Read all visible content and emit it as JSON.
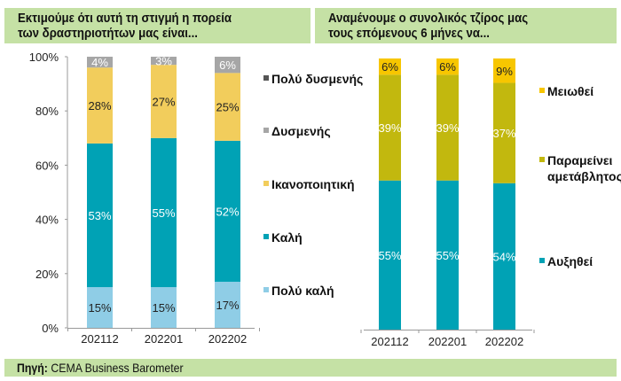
{
  "titles": {
    "left": [
      "Εκτιμούμε ότι αυτή τη στιγμή η πορεία",
      "των δραστηριοτήτων μας είναι..."
    ],
    "right": [
      "Αναμένουμε ο συνολικός τζίρος μας",
      "τους επόμενους 6 μήνες να..."
    ]
  },
  "footer": {
    "label": "Πηγή:",
    "source": "CEMA Business Barometer"
  },
  "chart_data": [
    {
      "type": "bar",
      "stacked": true,
      "title": "Εκτιμούμε ότι αυτή τη στιγμή η πορεία των δραστηριοτήτων μας είναι...",
      "categories": [
        "202112",
        "202201",
        "202202"
      ],
      "ylim": [
        0,
        100
      ],
      "yticks": [
        "0%",
        "20%",
        "40%",
        "60%",
        "80%",
        "100%"
      ],
      "legend_position": "right",
      "series": [
        {
          "name": "Πολύ καλή",
          "color": "#8fcde6",
          "label_color": "#222222",
          "values": [
            15,
            15,
            17
          ]
        },
        {
          "name": "Καλή",
          "color": "#00a2b5",
          "label_color": "#ffffff",
          "values": [
            53,
            55,
            52
          ]
        },
        {
          "name": "Ικανοποιητική",
          "color": "#f2cd5c",
          "label_color": "#222222",
          "values": [
            28,
            27,
            25
          ]
        },
        {
          "name": "Δυσμενής",
          "color": "#a6a6a6",
          "label_color": "#ffffff",
          "values": [
            4,
            3,
            6
          ]
        },
        {
          "name": "Πολύ δυσμενής",
          "color": "#555555",
          "label_color": "#ffffff",
          "values": [
            0,
            0,
            0
          ]
        }
      ],
      "legend_order": [
        "Πολύ δυσμενής",
        "Δυσμενής",
        "Ικανοποιητική",
        "Καλή",
        "Πολύ καλή"
      ]
    },
    {
      "type": "bar",
      "stacked": true,
      "title": "Αναμένουμε ο συνολικός τζίρος μας τους επόμενους 6 μήνες να...",
      "categories": [
        "202112",
        "202201",
        "202202"
      ],
      "ylim": [
        0,
        100
      ],
      "legend_position": "right",
      "series": [
        {
          "name": "Αυξηθεί",
          "color": "#00a2b5",
          "label_color": "#ffffff",
          "values": [
            55,
            55,
            54
          ]
        },
        {
          "name": "Παραμείνει αμετάβλητος",
          "color": "#c2b80e",
          "label_color": "#ffffff",
          "values": [
            39,
            39,
            37
          ]
        },
        {
          "name": "Μειωθεί",
          "color": "#f7c600",
          "label_color": "#222222",
          "values": [
            6,
            6,
            9
          ]
        }
      ],
      "legend_order": [
        "Μειωθεί",
        "Παραμείνει αμετάβλητος",
        "Αυξηθεί"
      ]
    }
  ]
}
